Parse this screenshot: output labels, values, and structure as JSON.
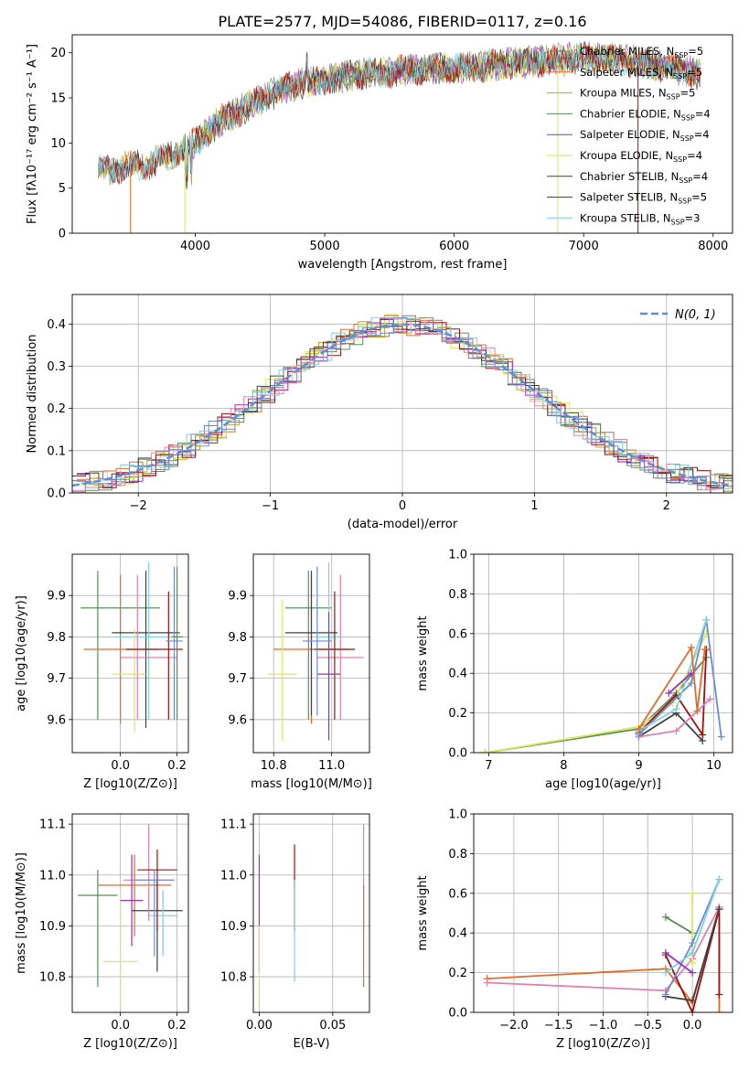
{
  "title": "PLATE=2577, MJD=54086, FIBERID=0117, z=0.16",
  "chart_data": [
    {
      "id": "spectrum",
      "type": "line",
      "xlabel": "wavelength [Angstrom, rest frame]",
      "ylabel": "Flux [fλ10⁻¹⁷ erg cm⁻² s⁻¹ A⁻¹]",
      "xlim": [
        3050,
        8150
      ],
      "ylim": [
        0,
        22
      ],
      "xticks": [
        4000,
        5000,
        6000,
        7000,
        8000
      ],
      "yticks": [
        0,
        5,
        10,
        15,
        20
      ],
      "grid": false,
      "legend_position": "upper right",
      "continuum": {
        "x": [
          3250,
          3400,
          3600,
          3800,
          4000,
          4200,
          4400,
          4600,
          4800,
          5000,
          5200,
          5400,
          5600,
          5800,
          6000,
          6200,
          6400,
          6600,
          6800,
          7000,
          7200,
          7400,
          7600,
          7800,
          7900
        ],
        "y": [
          7.0,
          7.2,
          7.5,
          8.5,
          10.0,
          12.5,
          14.0,
          15.5,
          16.5,
          17.0,
          17.5,
          17.8,
          18.0,
          18.2,
          18.3,
          18.5,
          18.8,
          19.0,
          19.2,
          19.5,
          19.3,
          19.0,
          18.5,
          18.0,
          17.5
        ]
      },
      "series": [
        {
          "name": "Chabrier MILES, N_SSP=5",
          "label_main": "Chabrier MILES, N",
          "label_sub": "SSP",
          "label_end": "=5",
          "color": "#808080"
        },
        {
          "name": "Salpeter MILES, N_SSP=5",
          "label_main": "Salpeter MILES, N",
          "label_sub": "SSP",
          "label_end": "=5",
          "color": "#e26b2a"
        },
        {
          "name": "Kroupa MILES, N_SSP=5",
          "label_main": "Kroupa MILES, N",
          "label_sub": "SSP",
          "label_end": "=5",
          "color": "#c8a020"
        },
        {
          "name": "Chabrier ELODIE, N_SSP=4",
          "label_main": "Chabrier ELODIE, N",
          "label_sub": "SSP",
          "label_end": "=4",
          "color": "#5a8f5a"
        },
        {
          "name": "Salpeter ELODIE, N_SSP=4",
          "label_main": "Salpeter ELODIE, N",
          "label_sub": "SSP",
          "label_end": "=4",
          "color": "#9a30b8"
        },
        {
          "name": "Kroupa ELODIE, N_SSP=4",
          "label_main": "Kroupa ELODIE, N",
          "label_sub": "SSP",
          "label_end": "=4",
          "color": "#d8e860"
        },
        {
          "name": "Chabrier STELIB, N_SSP=4",
          "label_main": "Chabrier STELIB, N",
          "label_sub": "SSP",
          "label_end": "=4",
          "color": "#404040"
        },
        {
          "name": "Salpeter STELIB, N_SSP=5",
          "label_main": "Salpeter STELIB, N",
          "label_sub": "SSP",
          "label_end": "=5",
          "color": "#a01010"
        },
        {
          "name": "Kroupa STELIB, N_SSP=3",
          "label_main": "Kroupa STELIB, N",
          "label_sub": "SSP",
          "label_end": "=3",
          "color": "#80d0e0"
        }
      ]
    },
    {
      "id": "residuals",
      "type": "line",
      "xlabel": "(data-model)/error",
      "ylabel": "Normed distribution",
      "xlim": [
        -2.5,
        2.5
      ],
      "ylim": [
        0,
        0.47
      ],
      "xticks": [
        -2,
        -1,
        0,
        1,
        2
      ],
      "yticks": [
        0.0,
        0.1,
        0.2,
        0.3,
        0.4
      ],
      "grid": true,
      "legend_position": "upper right",
      "normal_label": "N(0, 1)",
      "normal_color": "#5b8fd8",
      "bin_width": 0.1,
      "hist_colors": [
        "#808080",
        "#e26b2a",
        "#c8a020",
        "#5a8f5a",
        "#9a30b8",
        "#d8e860",
        "#404040",
        "#a01010",
        "#80d0e0",
        "#e080b0",
        "#6a8cd8"
      ]
    },
    {
      "id": "age-vs-Z",
      "type": "scatter",
      "xlabel": "Z [log10(Z/Z⊙)]",
      "ylabel": "age [log10(age/yr)]",
      "xlim": [
        -0.17,
        0.24
      ],
      "ylim": [
        9.52,
        10.0
      ],
      "xticks": [
        0.0,
        0.2
      ],
      "yticks": [
        9.6,
        9.7,
        9.8,
        9.9
      ],
      "grid": true,
      "points": [
        {
          "x": 0.0,
          "y": 9.87,
          "xerr": 0.14,
          "yerr_lo": 0.27,
          "yerr_hi": 0.09,
          "xc": -0.08,
          "color": "#5a8f5a"
        },
        {
          "x": 0.0,
          "y": 9.77,
          "xerr": 0.13,
          "yerr_lo": 0.18,
          "yerr_hi": 0.18,
          "xc": 0.0,
          "color": "#e26b2a"
        },
        {
          "x": 0.09,
          "y": 9.81,
          "xerr": 0.12,
          "yerr_lo": 0.23,
          "yerr_hi": 0.15,
          "xc": 0.09,
          "color": "#404040"
        },
        {
          "x": 0.1,
          "y": 9.8,
          "xerr": 0.12,
          "yerr_lo": 0.2,
          "yerr_hi": 0.18,
          "xc": 0.1,
          "color": "#80d0e0"
        },
        {
          "x": 0.1,
          "y": 9.75,
          "xerr": 0.1,
          "yerr_lo": 0.15,
          "yerr_hi": 0.2,
          "xc": 0.06,
          "color": "#e080b0"
        },
        {
          "x": 0.03,
          "y": 9.71,
          "xerr": 0.06,
          "yerr_lo": 0.14,
          "yerr_hi": 0.11,
          "xc": 0.05,
          "color": "#d8e860"
        },
        {
          "x": 0.12,
          "y": 9.77,
          "xerr": 0.1,
          "yerr_lo": 0.17,
          "yerr_hi": 0.14,
          "xc": 0.17,
          "color": "#a01010"
        },
        {
          "x": 0.19,
          "y": 9.79,
          "xerr": 0.03,
          "yerr_lo": 0.19,
          "yerr_hi": 0.18,
          "xc": 0.19,
          "color": "#6a8cd8"
        },
        {
          "x": 0.2,
          "y": 9.8,
          "xerr": 0.02,
          "yerr_lo": 0.2,
          "yerr_hi": 0.17,
          "xc": 0.2,
          "color": "#5a8f5a"
        }
      ]
    },
    {
      "id": "age-vs-mass",
      "type": "scatter",
      "xlabel": "mass [log10(M/M⊙)]",
      "ylabel": "",
      "xlim": [
        10.73,
        11.13
      ],
      "ylim": [
        9.52,
        10.0
      ],
      "xticks": [
        10.8,
        11.0
      ],
      "yticks": [
        9.6,
        9.7,
        9.8,
        9.9
      ],
      "grid": true,
      "points": [
        {
          "x": 10.92,
          "y": 9.87,
          "xerr": 0.08,
          "yerr_lo": 0.27,
          "yerr_hi": 0.09,
          "color": "#5a8f5a"
        },
        {
          "x": 10.93,
          "y": 9.77,
          "xerr": 0.13,
          "yerr_lo": 0.18,
          "yerr_hi": 0.18,
          "color": "#e26b2a"
        },
        {
          "x": 10.93,
          "y": 9.81,
          "xerr": 0.09,
          "yerr_lo": 0.2,
          "yerr_hi": 0.15,
          "color": "#404040"
        },
        {
          "x": 10.99,
          "y": 9.8,
          "xerr": 0.04,
          "yerr_lo": 0.2,
          "yerr_hi": 0.18,
          "color": "#80d0e0"
        },
        {
          "x": 11.03,
          "y": 9.75,
          "xerr": 0.08,
          "yerr_lo": 0.15,
          "yerr_hi": 0.2,
          "color": "#e080b0"
        },
        {
          "x": 10.83,
          "y": 9.71,
          "xerr": 0.05,
          "yerr_lo": 0.16,
          "yerr_hi": 0.18,
          "color": "#d8e860"
        },
        {
          "x": 11.01,
          "y": 9.77,
          "xerr": 0.07,
          "yerr_lo": 0.17,
          "yerr_hi": 0.14,
          "color": "#a01010"
        },
        {
          "x": 10.99,
          "y": 9.71,
          "xerr": 0.04,
          "yerr_lo": 0.16,
          "yerr_hi": 0.15,
          "color": "#9a30b8"
        },
        {
          "x": 10.95,
          "y": 9.79,
          "xerr": 0.05,
          "yerr_lo": 0.18,
          "yerr_hi": 0.18,
          "color": "#6a8cd8"
        }
      ]
    },
    {
      "id": "weight-vs-age",
      "type": "line",
      "xlabel": "age [log10(age/yr)]",
      "ylabel": "mass weight",
      "xlim": [
        6.8,
        10.25
      ],
      "ylim": [
        0,
        1.0
      ],
      "xticks": [
        7,
        8,
        9,
        10
      ],
      "yticks": [
        0.0,
        0.2,
        0.4,
        0.6,
        0.8,
        1.0
      ],
      "grid": true,
      "series": [
        {
          "color": "#5a8f5a",
          "x": [
            6.95,
            9.0,
            9.5,
            9.9
          ],
          "y": [
            0.0,
            0.12,
            0.3,
            0.48
          ]
        },
        {
          "color": "#d8e860",
          "x": [
            6.95,
            9.0,
            9.45,
            9.9
          ],
          "y": [
            0.0,
            0.13,
            0.25,
            0.6
          ]
        },
        {
          "color": "#404040",
          "x": [
            9.0,
            9.5,
            9.85
          ],
          "y": [
            0.08,
            0.2,
            0.06
          ]
        },
        {
          "color": "#a01010",
          "x": [
            9.0,
            9.5,
            9.85,
            9.9
          ],
          "y": [
            0.1,
            0.29,
            0.09,
            0.52
          ]
        },
        {
          "color": "#e080b0",
          "x": [
            9.0,
            9.5,
            9.95
          ],
          "y": [
            0.08,
            0.11,
            0.27
          ]
        },
        {
          "color": "#6a8cd8",
          "x": [
            9.0,
            9.7,
            9.9,
            10.1
          ],
          "y": [
            0.09,
            0.35,
            0.67,
            0.08
          ]
        },
        {
          "color": "#80d0e0",
          "x": [
            9.0,
            9.5,
            9.9
          ],
          "y": [
            0.11,
            0.22,
            0.67
          ]
        },
        {
          "color": "#e26b2a",
          "x": [
            9.0,
            9.7,
            9.78,
            9.88
          ],
          "y": [
            0.12,
            0.53,
            0.21,
            0.52
          ]
        },
        {
          "color": "#9a30b8",
          "x": [
            9.4,
            9.7
          ],
          "y": [
            0.3,
            0.4
          ]
        }
      ]
    },
    {
      "id": "mass-vs-Z",
      "type": "scatter",
      "xlabel": "Z [log10(Z/Z⊙)]",
      "ylabel": "mass [log10(M/M⊙)]",
      "xlim": [
        -0.17,
        0.24
      ],
      "ylim": [
        10.73,
        11.12
      ],
      "xticks": [
        0.0,
        0.2
      ],
      "yticks": [
        10.8,
        10.9,
        11.0,
        11.1
      ],
      "grid": true,
      "points": [
        {
          "x": -0.08,
          "y": 10.96,
          "xerr": 0.07,
          "yerr_lo": 0.18,
          "yerr_hi": 0.05,
          "color": "#5a8f5a"
        },
        {
          "x": 0.05,
          "y": 10.98,
          "xerr": 0.13,
          "yerr_lo": 0.1,
          "yerr_hi": 0.06,
          "color": "#e26b2a"
        },
        {
          "x": 0.13,
          "y": 10.93,
          "xerr": 0.09,
          "yerr_lo": 0.12,
          "yerr_hi": 0.06,
          "color": "#404040"
        },
        {
          "x": 0.15,
          "y": 10.92,
          "xerr": 0.05,
          "yerr_lo": 0.08,
          "yerr_hi": 0.05,
          "color": "#80d0e0"
        },
        {
          "x": 0.1,
          "y": 10.99,
          "xerr": 0.09,
          "yerr_lo": 0.08,
          "yerr_hi": 0.11,
          "color": "#e080b0"
        },
        {
          "x": 0.0,
          "y": 10.83,
          "xerr": 0.06,
          "yerr_lo": 0.09,
          "yerr_hi": 0.14,
          "color": "#d8e860"
        },
        {
          "x": 0.13,
          "y": 11.01,
          "xerr": 0.07,
          "yerr_lo": 0.12,
          "yerr_hi": 0.04,
          "color": "#a01010"
        },
        {
          "x": 0.04,
          "y": 10.95,
          "xerr": 0.04,
          "yerr_lo": 0.09,
          "yerr_hi": 0.09,
          "color": "#9a30b8"
        },
        {
          "x": 0.12,
          "y": 10.99,
          "xerr": 0.07,
          "yerr_lo": 0.15,
          "yerr_hi": 0.02,
          "color": "#6a8cd8"
        }
      ]
    },
    {
      "id": "mass-vs-EBV",
      "type": "scatter",
      "xlabel": "E(B-V)",
      "ylabel": "",
      "xlim": [
        -0.004,
        0.075
      ],
      "ylim": [
        10.73,
        11.12
      ],
      "xticks": [
        0.0,
        0.05
      ],
      "yticks": [
        10.8,
        10.9,
        11.0,
        11.1
      ],
      "grid": true,
      "points": [
        {
          "x": 0.0,
          "y": 10.95,
          "yerr_lo": 0.14,
          "yerr_hi": 0.09,
          "color": "#9a30b8"
        },
        {
          "x": 0.0,
          "y": 10.83,
          "yerr_lo": 0.09,
          "yerr_hi": 0.07,
          "color": "#d8e860"
        },
        {
          "x": 0.024,
          "y": 11.01,
          "yerr_lo": 0.12,
          "yerr_hi": 0.05,
          "color": "#a01010"
        },
        {
          "x": 0.024,
          "y": 10.92,
          "yerr_lo": 0.13,
          "yerr_hi": 0.07,
          "color": "#80d0e0"
        },
        {
          "x": 0.071,
          "y": 10.99,
          "yerr_lo": 0.1,
          "yerr_hi": 0.11,
          "color": "#e080b0"
        },
        {
          "x": 0.071,
          "y": 10.93,
          "yerr_lo": 0.15,
          "yerr_hi": 0.05,
          "color": "#e26b2a"
        }
      ]
    },
    {
      "id": "weight-vs-Z",
      "type": "line",
      "xlabel": "Z [log10(Z/Z⊙)]",
      "ylabel": "mass weight",
      "xlim": [
        -2.45,
        0.45
      ],
      "ylim": [
        0,
        1.0
      ],
      "xticks": [
        -2.0,
        -1.5,
        -1.0,
        -0.5,
        0.0
      ],
      "yticks": [
        0.0,
        0.2,
        0.4,
        0.6,
        0.8,
        1.0
      ],
      "grid": true,
      "series": [
        {
          "color": "#e26b2a",
          "x": [
            -2.3,
            -0.3,
            0.0,
            0.3,
            0.3
          ],
          "y": [
            0.17,
            0.22,
            0.05,
            0.53,
            0.0
          ]
        },
        {
          "color": "#e080b0",
          "x": [
            -2.3,
            -0.3,
            0.0,
            0.3
          ],
          "y": [
            0.15,
            0.11,
            0.27,
            0.53
          ]
        },
        {
          "color": "#a01010",
          "x": [
            -0.3,
            0.0,
            0.3,
            0.3
          ],
          "y": [
            0.29,
            0.0,
            0.52,
            0.09
          ]
        },
        {
          "color": "#5a8f5a",
          "x": [
            -0.3,
            0.0
          ],
          "y": [
            0.48,
            0.4
          ]
        },
        {
          "color": "#d8e860",
          "x": [
            0.0,
            0.0
          ],
          "y": [
            0.6,
            0.25
          ]
        },
        {
          "color": "#404040",
          "x": [
            -0.3,
            0.0,
            0.3
          ],
          "y": [
            0.08,
            0.06,
            0.52
          ]
        },
        {
          "color": "#6a8cd8",
          "x": [
            -0.3,
            0.0,
            0.3
          ],
          "y": [
            0.09,
            0.35,
            0.67
          ]
        },
        {
          "color": "#80d0e0",
          "x": [
            -0.3,
            0.0,
            0.3
          ],
          "y": [
            0.2,
            0.3,
            0.67
          ]
        },
        {
          "color": "#9a30b8",
          "x": [
            -0.3,
            0.0
          ],
          "y": [
            0.3,
            0.2
          ]
        }
      ]
    }
  ]
}
